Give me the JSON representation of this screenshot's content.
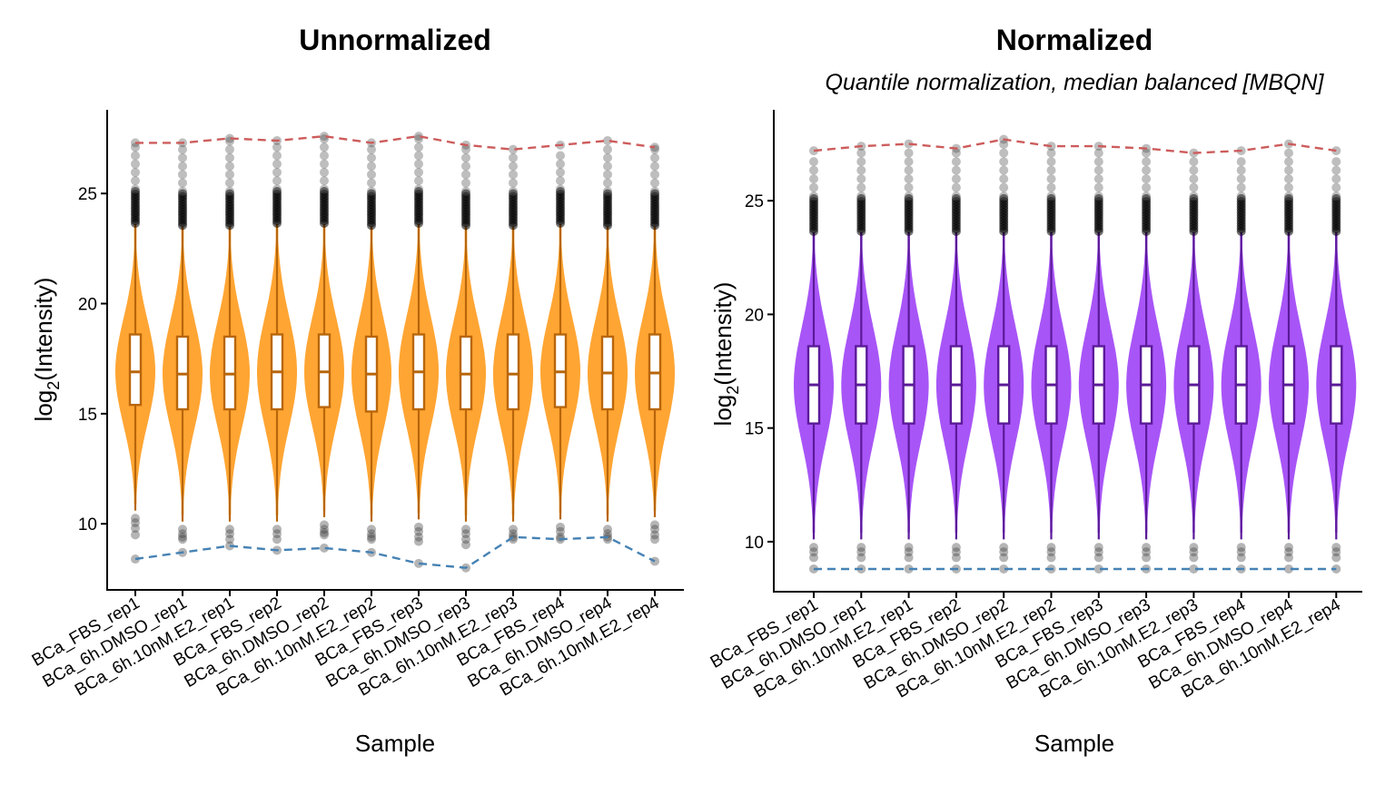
{
  "chart_data": [
    {
      "type": "violin",
      "title": "Unnormalized",
      "subtitle": "",
      "xlabel": "Sample",
      "ylabel_base": "log",
      "ylabel_sub": "2",
      "ylabel_rest": "(Intensity)",
      "ylim": [
        7.0,
        28.8
      ],
      "yticks": [
        10,
        15,
        20,
        25
      ],
      "fill_color": "#FFA533",
      "line_color": "#B8660B",
      "max_line_color": "#CD5C5C",
      "min_line_color": "#4682B4",
      "categories": [
        "BCa_FBS_rep1",
        "BCa_6h.DMSO_rep1",
        "BCa_6h.10nM.E2_rep1",
        "BCa_FBS_rep2",
        "BCa_6h.DMSO_rep2",
        "BCa_6h.10nM.E2_rep2",
        "BCa_FBS_rep3",
        "BCa_6h.DMSO_rep3",
        "BCa_6h.10nM.E2_rep3",
        "BCa_FBS_rep4",
        "BCa_6h.DMSO_rep4",
        "BCa_6h.10nM.E2_rep4"
      ],
      "median": [
        16.9,
        16.8,
        16.8,
        16.9,
        16.9,
        16.8,
        16.9,
        16.8,
        16.8,
        16.9,
        16.85,
        16.85
      ],
      "q1": [
        15.4,
        15.2,
        15.2,
        15.2,
        15.3,
        15.1,
        15.2,
        15.2,
        15.2,
        15.3,
        15.2,
        15.2
      ],
      "q3": [
        18.6,
        18.5,
        18.5,
        18.6,
        18.6,
        18.5,
        18.6,
        18.5,
        18.6,
        18.6,
        18.5,
        18.6
      ],
      "whisker_low": [
        10.6,
        10.1,
        10.1,
        10.1,
        10.3,
        10.1,
        10.2,
        10.1,
        10.1,
        10.2,
        10.1,
        10.3
      ],
      "whisker_high": [
        23.6,
        23.5,
        23.5,
        23.6,
        23.6,
        23.5,
        23.6,
        23.5,
        23.5,
        23.6,
        23.5,
        23.5
      ],
      "max": [
        27.3,
        27.3,
        27.5,
        27.4,
        27.6,
        27.3,
        27.6,
        27.2,
        27.0,
        27.2,
        27.4,
        27.1
      ],
      "min": [
        8.4,
        8.7,
        9.0,
        8.8,
        8.9,
        8.7,
        8.2,
        8.0,
        9.4,
        9.3,
        9.4,
        8.3
      ]
    },
    {
      "type": "violin",
      "title": "Normalized",
      "subtitle": "Quantile normalization, median balanced [MBQN]",
      "xlabel": "Sample",
      "ylabel_base": "log",
      "ylabel_sub": "2",
      "ylabel_rest": "(Intensity)",
      "ylim": [
        7.8,
        29.0
      ],
      "yticks": [
        10,
        15,
        20,
        25
      ],
      "fill_color": "#A855F7",
      "line_color": "#5B1A99",
      "max_line_color": "#CD5C5C",
      "min_line_color": "#4682B4",
      "categories": [
        "BCa_FBS_rep1",
        "BCa_6h.DMSO_rep1",
        "BCa_6h.10nM.E2_rep1",
        "BCa_FBS_rep2",
        "BCa_6h.DMSO_rep2",
        "BCa_6h.10nM.E2_rep2",
        "BCa_FBS_rep3",
        "BCa_6h.DMSO_rep3",
        "BCa_6h.10nM.E2_rep3",
        "BCa_FBS_rep4",
        "BCa_6h.DMSO_rep4",
        "BCa_6h.10nM.E2_rep4"
      ],
      "median": [
        16.9,
        16.9,
        16.9,
        16.9,
        16.9,
        16.9,
        16.9,
        16.9,
        16.9,
        16.9,
        16.9,
        16.9
      ],
      "q1": [
        15.2,
        15.2,
        15.2,
        15.2,
        15.2,
        15.2,
        15.2,
        15.2,
        15.2,
        15.2,
        15.2,
        15.2
      ],
      "q3": [
        18.6,
        18.6,
        18.6,
        18.6,
        18.6,
        18.6,
        18.6,
        18.6,
        18.6,
        18.6,
        18.6,
        18.6
      ],
      "whisker_low": [
        10.1,
        10.1,
        10.1,
        10.1,
        10.1,
        10.1,
        10.1,
        10.1,
        10.1,
        10.1,
        10.1,
        10.1
      ],
      "whisker_high": [
        23.6,
        23.6,
        23.6,
        23.6,
        23.6,
        23.6,
        23.6,
        23.6,
        23.6,
        23.6,
        23.6,
        23.6
      ],
      "max": [
        27.2,
        27.4,
        27.5,
        27.3,
        27.7,
        27.4,
        27.4,
        27.3,
        27.1,
        27.2,
        27.5,
        27.2
      ],
      "min": [
        8.8,
        8.8,
        8.8,
        8.8,
        8.8,
        8.8,
        8.8,
        8.8,
        8.8,
        8.8,
        8.8,
        8.8
      ]
    }
  ]
}
